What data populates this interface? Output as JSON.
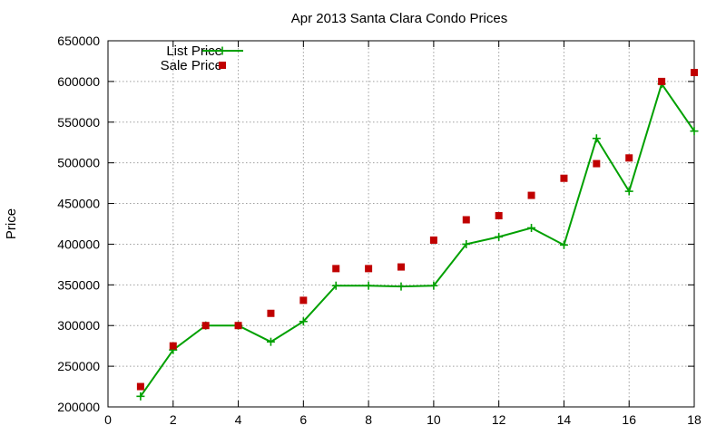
{
  "chart_data": {
    "type": "line",
    "title": "Apr 2013 Santa Clara Condo Prices",
    "xlabel": "",
    "ylabel": "Price",
    "xlim": [
      0,
      18
    ],
    "ylim": [
      200000,
      650000
    ],
    "xticks": [
      "0",
      "2",
      "4",
      "6",
      "8",
      "10",
      "12",
      "14",
      "16",
      "18"
    ],
    "yticks": [
      "200000",
      "250000",
      "300000",
      "350000",
      "400000",
      "450000",
      "500000",
      "550000",
      "600000",
      "650000"
    ],
    "grid": true,
    "legend_position": "top-left",
    "series": [
      {
        "name": "List Price",
        "style": "line-with-plus-markers",
        "color": "#00a000",
        "x": [
          1,
          2,
          3,
          4,
          5,
          6,
          7,
          8,
          9,
          10,
          11,
          12,
          13,
          14,
          15,
          16,
          17,
          18
        ],
        "y": [
          213000,
          270000,
          300000,
          300000,
          280000,
          305000,
          349000,
          349000,
          348000,
          349000,
          400000,
          409000,
          420000,
          399000,
          530000,
          465000,
          597000,
          539000
        ]
      },
      {
        "name": "Sale Price",
        "style": "square-markers",
        "color": "#c00000",
        "x": [
          1,
          2,
          3,
          4,
          5,
          6,
          7,
          8,
          9,
          10,
          11,
          12,
          13,
          14,
          15,
          16,
          17,
          18
        ],
        "y": [
          225000,
          275000,
          300000,
          300000,
          315000,
          331000,
          370000,
          370000,
          372000,
          405000,
          430000,
          435000,
          460000,
          481000,
          499000,
          506000,
          600000,
          611000
        ]
      }
    ]
  }
}
